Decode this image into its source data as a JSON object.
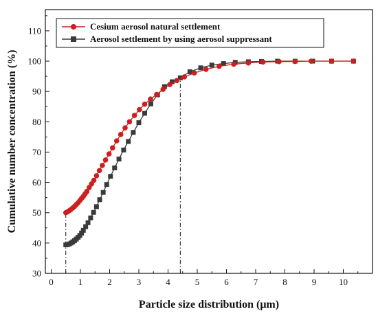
{
  "chart_data": {
    "type": "line",
    "xlabel": "Particle size distribution (μm)",
    "ylabel": "Cumulative number concentration (%)",
    "xlim": [
      -0.2,
      11.0
    ],
    "ylim": [
      30,
      117
    ],
    "xticks": [
      0,
      1,
      2,
      3,
      4,
      5,
      6,
      7,
      8,
      9,
      10
    ],
    "yticks": [
      30,
      40,
      50,
      60,
      70,
      80,
      90,
      100,
      110
    ],
    "grid": false,
    "legend_position": "top-left",
    "series": [
      {
        "name": "Cesium aerosol natural settlement",
        "color": "#cc1f1f",
        "marker": "circle",
        "x": [
          0.5,
          0.56,
          0.62,
          0.68,
          0.74,
          0.8,
          0.86,
          0.92,
          0.98,
          1.04,
          1.1,
          1.16,
          1.22,
          1.3,
          1.38,
          1.46,
          1.55,
          1.65,
          1.75,
          1.86,
          1.98,
          2.1,
          2.24,
          2.38,
          2.53,
          2.68,
          2.85,
          3.02,
          3.2,
          3.4,
          3.61,
          3.83,
          4.06,
          4.3,
          4.56,
          4.9,
          5.3,
          5.75,
          6.25,
          6.75,
          7.25,
          7.8,
          8.35,
          8.9,
          9.6,
          10.35
        ],
        "y": [
          50.0,
          50.3,
          50.7,
          51.1,
          51.6,
          52.1,
          52.7,
          53.3,
          54.0,
          54.7,
          55.4,
          56.2,
          57.0,
          58.3,
          59.5,
          60.7,
          62.2,
          63.9,
          65.6,
          67.4,
          69.4,
          71.4,
          73.7,
          75.8,
          78.0,
          80.0,
          82.1,
          84.0,
          85.8,
          87.5,
          89.0,
          90.7,
          92.3,
          93.6,
          94.8,
          96.1,
          97.3,
          98.3,
          99.0,
          99.4,
          99.7,
          99.85,
          99.9,
          100.0,
          100.0,
          100.0
        ]
      },
      {
        "name": "Aerosol settlement by using aerosol suppressant",
        "color": "#3a3a3a",
        "marker": "square",
        "x": [
          0.5,
          0.56,
          0.62,
          0.68,
          0.74,
          0.8,
          0.86,
          0.92,
          0.98,
          1.04,
          1.1,
          1.18,
          1.26,
          1.35,
          1.45,
          1.55,
          1.66,
          1.78,
          1.9,
          2.03,
          2.17,
          2.32,
          2.48,
          2.64,
          2.81,
          3.0,
          3.2,
          3.41,
          3.64,
          3.88,
          4.14,
          4.42,
          4.75,
          5.12,
          5.5,
          5.9,
          6.3,
          6.75,
          7.2,
          7.75,
          8.35,
          8.95,
          9.6,
          10.35
        ],
        "y": [
          39.4,
          39.5,
          39.7,
          40.0,
          40.4,
          40.8,
          41.3,
          41.9,
          42.5,
          43.3,
          44.2,
          45.4,
          46.7,
          48.3,
          50.1,
          52.0,
          54.3,
          56.7,
          59.3,
          62.0,
          64.8,
          67.7,
          70.7,
          73.5,
          76.5,
          79.7,
          82.8,
          85.9,
          88.9,
          91.6,
          93.2,
          94.5,
          96.5,
          97.8,
          98.7,
          99.2,
          99.6,
          99.8,
          99.9,
          100.0,
          100.0,
          100.0,
          100.0,
          100.0
        ]
      }
    ],
    "reference_lines": [
      {
        "x": 0.5,
        "y_from": 30,
        "y_to": 50.0
      },
      {
        "x": 4.42,
        "y_from": 30,
        "y_to": 94.2
      }
    ]
  }
}
